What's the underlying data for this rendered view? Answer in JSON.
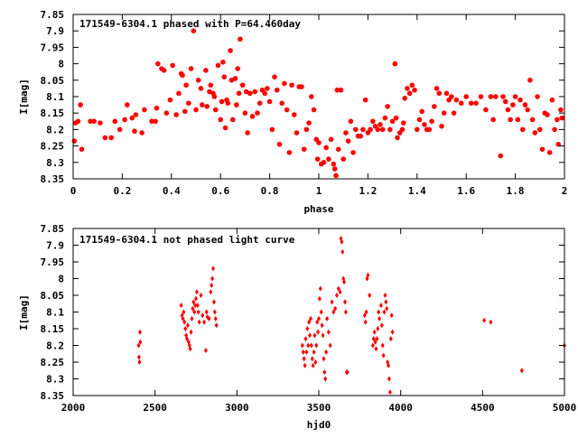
{
  "chart_data": [
    {
      "type": "scatter",
      "title": "171549-6304.1 phased with P=64.460day",
      "xlabel": "phase",
      "ylabel": "I[mag]",
      "xlim": [
        0,
        2
      ],
      "ylim": [
        8.35,
        7.85
      ],
      "y_inverted": true,
      "xticks": [
        "0",
        "0.2",
        "0.4",
        "0.6",
        "0.8",
        "1",
        "1.2",
        "1.4",
        "1.6",
        "1.8",
        "2"
      ],
      "yticks": [
        "7.85",
        "7.9",
        "7.95",
        "8",
        "8.05",
        "8.1",
        "8.15",
        "8.2",
        "8.25",
        "8.3",
        "8.35"
      ],
      "marker_color": "#ff0000",
      "marker": "filled-circle",
      "points": [
        [
          0.005,
          8.235
        ],
        [
          0.01,
          8.18
        ],
        [
          0.02,
          8.175
        ],
        [
          0.03,
          8.125
        ],
        [
          0.035,
          8.26
        ],
        [
          0.07,
          8.175
        ],
        [
          0.085,
          8.175
        ],
        [
          0.11,
          8.18
        ],
        [
          0.13,
          8.225
        ],
        [
          0.155,
          8.225
        ],
        [
          0.17,
          8.175
        ],
        [
          0.19,
          8.2
        ],
        [
          0.21,
          8.17
        ],
        [
          0.22,
          8.125
        ],
        [
          0.24,
          8.165
        ],
        [
          0.255,
          8.155
        ],
        [
          0.25,
          8.205
        ],
        [
          0.28,
          8.21
        ],
        [
          0.29,
          8.14
        ],
        [
          0.32,
          8.175
        ],
        [
          0.335,
          8.175
        ],
        [
          0.34,
          8.135
        ],
        [
          0.345,
          8.0
        ],
        [
          0.36,
          8.015
        ],
        [
          0.37,
          8.02
        ],
        [
          0.38,
          8.15
        ],
        [
          0.395,
          8.11
        ],
        [
          0.405,
          8.005
        ],
        [
          0.42,
          8.155
        ],
        [
          0.43,
          8.09
        ],
        [
          0.44,
          8.03
        ],
        [
          0.445,
          8.035
        ],
        [
          0.455,
          8.145
        ],
        [
          0.46,
          8.065
        ],
        [
          0.47,
          8.12
        ],
        [
          0.48,
          8.015
        ],
        [
          0.49,
          7.9
        ],
        [
          0.5,
          8.14
        ],
        [
          0.51,
          8.05
        ],
        [
          0.52,
          8.075
        ],
        [
          0.525,
          8.125
        ],
        [
          0.54,
          8.02
        ],
        [
          0.545,
          8.13
        ],
        [
          0.555,
          8.085
        ],
        [
          0.56,
          8.065
        ],
        [
          0.57,
          8.09
        ],
        [
          0.575,
          8.1
        ],
        [
          0.58,
          8.14
        ],
        [
          0.59,
          8.005
        ],
        [
          0.6,
          8.17
        ],
        [
          0.605,
          8.115
        ],
        [
          0.61,
          7.995
        ],
        [
          0.615,
          8.04
        ],
        [
          0.62,
          8.195
        ],
        [
          0.625,
          8.11
        ],
        [
          0.63,
          8.12
        ],
        [
          0.64,
          7.96
        ],
        [
          0.645,
          8.05
        ],
        [
          0.65,
          8.17
        ],
        [
          0.66,
          8.045
        ],
        [
          0.665,
          8.125
        ],
        [
          0.67,
          8.015
        ],
        [
          0.675,
          8.09
        ],
        [
          0.68,
          7.925
        ],
        [
          0.69,
          8.065
        ],
        [
          0.7,
          8.15
        ],
        [
          0.705,
          8.085
        ],
        [
          0.71,
          8.21
        ],
        [
          0.72,
          8.09
        ],
        [
          0.73,
          8.16
        ],
        [
          0.74,
          8.085
        ],
        [
          0.75,
          8.15
        ],
        [
          0.76,
          8.12
        ],
        [
          0.77,
          8.08
        ],
        [
          0.78,
          8.09
        ],
        [
          0.79,
          8.075
        ],
        [
          0.8,
          8.115
        ],
        [
          0.81,
          8.2
        ],
        [
          0.82,
          8.04
        ],
        [
          0.83,
          8.08
        ],
        [
          0.84,
          8.245
        ],
        [
          0.85,
          8.12
        ],
        [
          0.86,
          8.06
        ],
        [
          0.87,
          8.14
        ],
        [
          0.88,
          8.27
        ],
        [
          0.89,
          8.065
        ],
        [
          0.9,
          8.155
        ],
        [
          0.91,
          8.21
        ],
        [
          0.92,
          8.07
        ],
        [
          0.93,
          8.07
        ],
        [
          0.94,
          8.26
        ],
        [
          0.95,
          8.2
        ],
        [
          0.96,
          8.18
        ],
        [
          0.97,
          8.1
        ],
        [
          0.98,
          8.14
        ],
        [
          0.99,
          8.23
        ],
        [
          0.995,
          8.29
        ],
        [
          1.0,
          8.24
        ],
        [
          1.01,
          8.305
        ],
        [
          1.02,
          8.3
        ],
        [
          1.03,
          8.255
        ],
        [
          1.04,
          8.29
        ],
        [
          1.05,
          8.23
        ],
        [
          1.06,
          8.305
        ],
        [
          1.065,
          8.32
        ],
        [
          1.07,
          8.34
        ],
        [
          1.075,
          8.08
        ],
        [
          1.08,
          8.26
        ],
        [
          1.09,
          8.08
        ],
        [
          1.1,
          8.29
        ],
        [
          1.11,
          8.21
        ],
        [
          1.12,
          8.235
        ],
        [
          1.13,
          8.175
        ],
        [
          1.14,
          8.27
        ],
        [
          1.15,
          8.2
        ],
        [
          1.16,
          8.22
        ],
        [
          1.17,
          8.22
        ],
        [
          1.18,
          8.2
        ],
        [
          1.19,
          8.11
        ],
        [
          1.2,
          8.21
        ],
        [
          1.21,
          8.2
        ],
        [
          1.22,
          8.175
        ],
        [
          1.23,
          8.19
        ],
        [
          1.24,
          8.2
        ],
        [
          1.25,
          8.185
        ],
        [
          1.26,
          8.2
        ],
        [
          1.27,
          8.165
        ],
        [
          1.28,
          8.13
        ],
        [
          1.29,
          8.2
        ],
        [
          1.3,
          8.175
        ],
        [
          1.31,
          8.0
        ],
        [
          1.315,
          8.165
        ],
        [
          1.32,
          8.225
        ],
        [
          1.33,
          8.21
        ],
        [
          1.34,
          8.2
        ],
        [
          1.345,
          8.18
        ],
        [
          1.35,
          8.105
        ],
        [
          1.36,
          8.075
        ],
        [
          1.37,
          8.09
        ],
        [
          1.38,
          8.065
        ],
        [
          1.39,
          8.08
        ],
        [
          1.4,
          8.2
        ],
        [
          1.41,
          8.17
        ],
        [
          1.42,
          8.145
        ],
        [
          1.43,
          8.185
        ],
        [
          1.44,
          8.2
        ],
        [
          1.45,
          8.2
        ],
        [
          1.46,
          8.175
        ],
        [
          1.47,
          8.13
        ],
        [
          1.48,
          8.075
        ],
        [
          1.49,
          8.09
        ],
        [
          1.5,
          8.19
        ],
        [
          1.51,
          8.15
        ],
        [
          1.52,
          8.09
        ],
        [
          1.53,
          8.11
        ],
        [
          1.54,
          8.1
        ],
        [
          1.55,
          8.15
        ],
        [
          1.56,
          8.11
        ],
        [
          1.58,
          8.12
        ],
        [
          1.6,
          8.1
        ],
        [
          1.62,
          8.12
        ],
        [
          1.64,
          8.12
        ],
        [
          1.66,
          8.1
        ],
        [
          1.68,
          8.14
        ],
        [
          1.7,
          8.1
        ],
        [
          1.71,
          8.17
        ],
        [
          1.72,
          8.1
        ],
        [
          1.74,
          8.28
        ],
        [
          1.75,
          8.1
        ],
        [
          1.76,
          8.115
        ],
        [
          1.77,
          8.14
        ],
        [
          1.78,
          8.17
        ],
        [
          1.79,
          8.125
        ],
        [
          1.8,
          8.1
        ],
        [
          1.81,
          8.17
        ],
        [
          1.82,
          8.11
        ],
        [
          1.83,
          8.2
        ],
        [
          1.84,
          8.125
        ],
        [
          1.85,
          8.14
        ],
        [
          1.86,
          8.05
        ],
        [
          1.87,
          8.17
        ],
        [
          1.88,
          8.21
        ],
        [
          1.89,
          8.1
        ],
        [
          1.9,
          8.2
        ],
        [
          1.91,
          8.26
        ],
        [
          1.92,
          8.15
        ],
        [
          1.93,
          8.155
        ],
        [
          1.94,
          8.27
        ],
        [
          1.95,
          8.11
        ],
        [
          1.96,
          8.2
        ],
        [
          1.97,
          8.17
        ],
        [
          1.975,
          8.245
        ],
        [
          1.985,
          8.14
        ],
        [
          1.99,
          8.165
        ]
      ]
    },
    {
      "type": "scatter",
      "title": "171549-6304.1 not phased light curve",
      "xlabel": "hjd0",
      "ylabel": "I[mag]",
      "xlim": [
        2000,
        5000
      ],
      "ylim": [
        8.35,
        7.85
      ],
      "y_inverted": true,
      "xticks": [
        "2000",
        "2500",
        "3000",
        "3500",
        "4000",
        "4500",
        "5000"
      ],
      "yticks": [
        "7.85",
        "7.9",
        "7.95",
        "8",
        "8.05",
        "8.1",
        "8.15",
        "8.2",
        "8.25",
        "8.3",
        "8.35"
      ],
      "marker_color": "#ff0000",
      "marker": "small-diamond",
      "points": [
        [
          2400,
          8.2
        ],
        [
          2402,
          8.235
        ],
        [
          2405,
          8.25
        ],
        [
          2408,
          8.16
        ],
        [
          2410,
          8.19
        ],
        [
          2660,
          8.08
        ],
        [
          2665,
          8.11
        ],
        [
          2670,
          8.12
        ],
        [
          2675,
          8.1
        ],
        [
          2680,
          8.13
        ],
        [
          2685,
          8.15
        ],
        [
          2690,
          8.17
        ],
        [
          2695,
          8.18
        ],
        [
          2700,
          8.14
        ],
        [
          2705,
          8.19
        ],
        [
          2710,
          8.2
        ],
        [
          2715,
          8.21
        ],
        [
          2720,
          8.16
        ],
        [
          2725,
          8.12
        ],
        [
          2730,
          8.09
        ],
        [
          2735,
          8.07
        ],
        [
          2740,
          8.1
        ],
        [
          2745,
          8.08
        ],
        [
          2750,
          8.06
        ],
        [
          2755,
          8.04
        ],
        [
          2760,
          8.08
        ],
        [
          2765,
          8.1
        ],
        [
          2770,
          8.13
        ],
        [
          2780,
          8.05
        ],
        [
          2790,
          8.11
        ],
        [
          2800,
          8.13
        ],
        [
          2810,
          8.215
        ],
        [
          2815,
          8.1
        ],
        [
          2820,
          8.115
        ],
        [
          2830,
          8.12
        ],
        [
          2840,
          8.04
        ],
        [
          2845,
          8.02
        ],
        [
          2850,
          8.0
        ],
        [
          2855,
          7.97
        ],
        [
          2860,
          8.07
        ],
        [
          2865,
          8.1
        ],
        [
          2870,
          8.12
        ],
        [
          2875,
          8.14
        ],
        [
          3400,
          8.2
        ],
        [
          3405,
          8.22
        ],
        [
          3410,
          8.24
        ],
        [
          3415,
          8.26
        ],
        [
          3420,
          8.18
        ],
        [
          3425,
          8.22
        ],
        [
          3430,
          8.15
        ],
        [
          3435,
          8.2
        ],
        [
          3440,
          8.13
        ],
        [
          3445,
          8.17
        ],
        [
          3450,
          8.12
        ],
        [
          3455,
          8.2
        ],
        [
          3460,
          8.24
        ],
        [
          3465,
          8.26
        ],
        [
          3470,
          8.22
        ],
        [
          3475,
          8.17
        ],
        [
          3480,
          8.25
        ],
        [
          3485,
          8.2
        ],
        [
          3490,
          8.13
        ],
        [
          3495,
          8.16
        ],
        [
          3500,
          8.12
        ],
        [
          3505,
          8.06
        ],
        [
          3510,
          8.03
        ],
        [
          3515,
          8.1
        ],
        [
          3520,
          8.14
        ],
        [
          3525,
          8.17
        ],
        [
          3530,
          8.24
        ],
        [
          3535,
          8.28
        ],
        [
          3540,
          8.3
        ],
        [
          3545,
          8.22
        ],
        [
          3550,
          8.12
        ],
        [
          3560,
          8.16
        ],
        [
          3570,
          8.2
        ],
        [
          3580,
          8.07
        ],
        [
          3590,
          8.1
        ],
        [
          3600,
          8.09
        ],
        [
          3610,
          8.05
        ],
        [
          3620,
          8.03
        ],
        [
          3630,
          8.04
        ],
        [
          3635,
          7.88
        ],
        [
          3640,
          7.89
        ],
        [
          3645,
          7.92
        ],
        [
          3650,
          8.0
        ],
        [
          3655,
          8.01
        ],
        [
          3660,
          8.07
        ],
        [
          3665,
          8.1
        ],
        [
          3670,
          8.28
        ],
        [
          3675,
          8.28
        ],
        [
          3780,
          8.11
        ],
        [
          3785,
          8.13
        ],
        [
          3790,
          8.1
        ],
        [
          3795,
          8.0
        ],
        [
          3800,
          7.99
        ],
        [
          3810,
          8.05
        ],
        [
          3830,
          8.2
        ],
        [
          3835,
          8.18
        ],
        [
          3840,
          8.16
        ],
        [
          3845,
          8.19
        ],
        [
          3850,
          8.21
        ],
        [
          3855,
          8.18
        ],
        [
          3860,
          8.15
        ],
        [
          3865,
          8.1
        ],
        [
          3870,
          8.12
        ],
        [
          3880,
          8.08
        ],
        [
          3885,
          8.14
        ],
        [
          3890,
          8.2
        ],
        [
          3895,
          8.23
        ],
        [
          3900,
          8.1
        ],
        [
          3905,
          8.05
        ],
        [
          3910,
          8.07
        ],
        [
          3915,
          8.09
        ],
        [
          3920,
          8.25
        ],
        [
          3925,
          8.26
        ],
        [
          3930,
          8.3
        ],
        [
          3935,
          8.34
        ],
        [
          3940,
          8.18
        ],
        [
          3945,
          8.11
        ],
        [
          3950,
          8.16
        ],
        [
          4510,
          8.125
        ],
        [
          4550,
          8.13
        ],
        [
          4740,
          8.275
        ],
        [
          5000,
          8.2
        ]
      ]
    }
  ]
}
